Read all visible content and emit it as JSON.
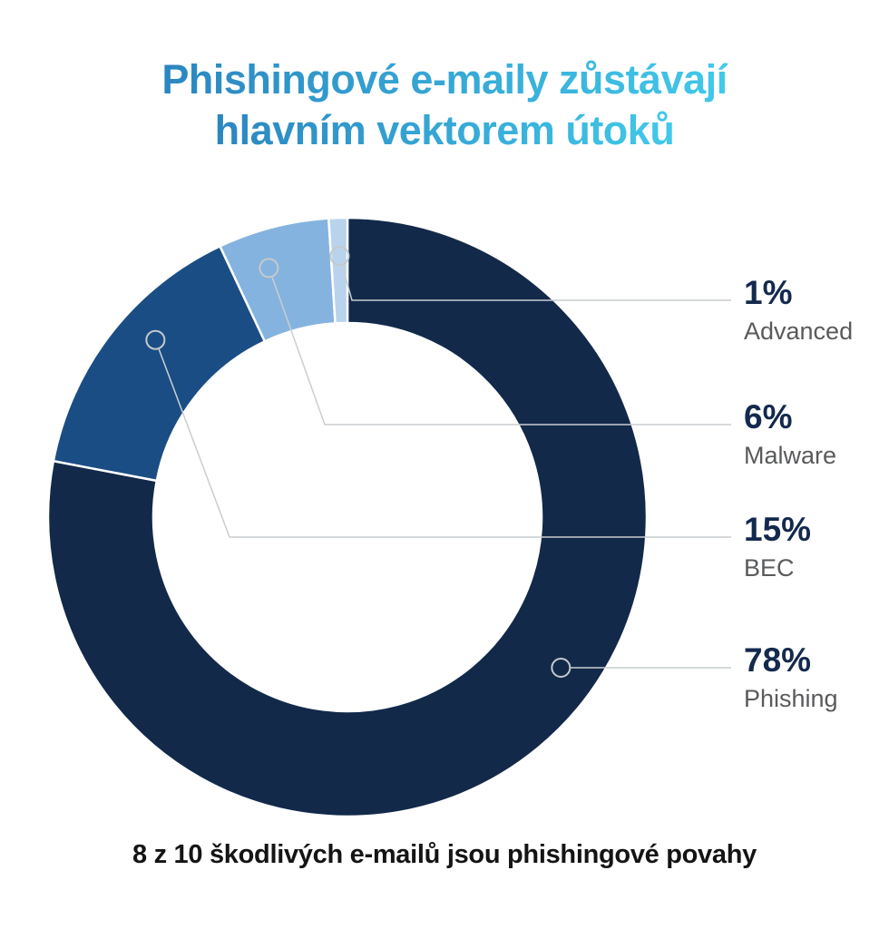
{
  "title": {
    "line1": "Phishingové e-maily zůstávají",
    "line2": "hlavním vektorem útoků",
    "gradient_start": "#2b86c0",
    "gradient_end": "#41c9ea"
  },
  "caption": "8 z 10 škodlivých e-mailů jsou phishingové povahy",
  "chart_data": {
    "type": "pie",
    "variant": "donut",
    "title": "Phishingové e-maily zůstávají hlavním vektorem útoků",
    "subtitle": "8 z 10 škodlivých e-mailů jsou phishingové povahy",
    "start_angle": "12-oclock",
    "direction": "clockwise",
    "legend_position": "right",
    "series": [
      {
        "name": "Phishing",
        "value": 78,
        "pct_label": "78%",
        "color": "#12294a"
      },
      {
        "name": "BEC",
        "value": 15,
        "pct_label": "15%",
        "color": "#1b4d85"
      },
      {
        "name": "Malware",
        "value": 6,
        "pct_label": "6%",
        "color": "#85b3df"
      },
      {
        "name": "Advanced",
        "value": 1,
        "pct_label": "1%",
        "color": "#b9d3ec"
      }
    ],
    "legend": [
      {
        "pct": "1%",
        "name": "Advanced"
      },
      {
        "pct": "6%",
        "name": "Malware"
      },
      {
        "pct": "15%",
        "name": "BEC"
      },
      {
        "pct": "78%",
        "name": "Phishing"
      }
    ],
    "pct_color": "#14294e",
    "label_color": "#595a5c",
    "leader_color": "#c9ced0",
    "marker_stroke": "#c4cacc",
    "slice_gap_color": "#ffffff"
  }
}
